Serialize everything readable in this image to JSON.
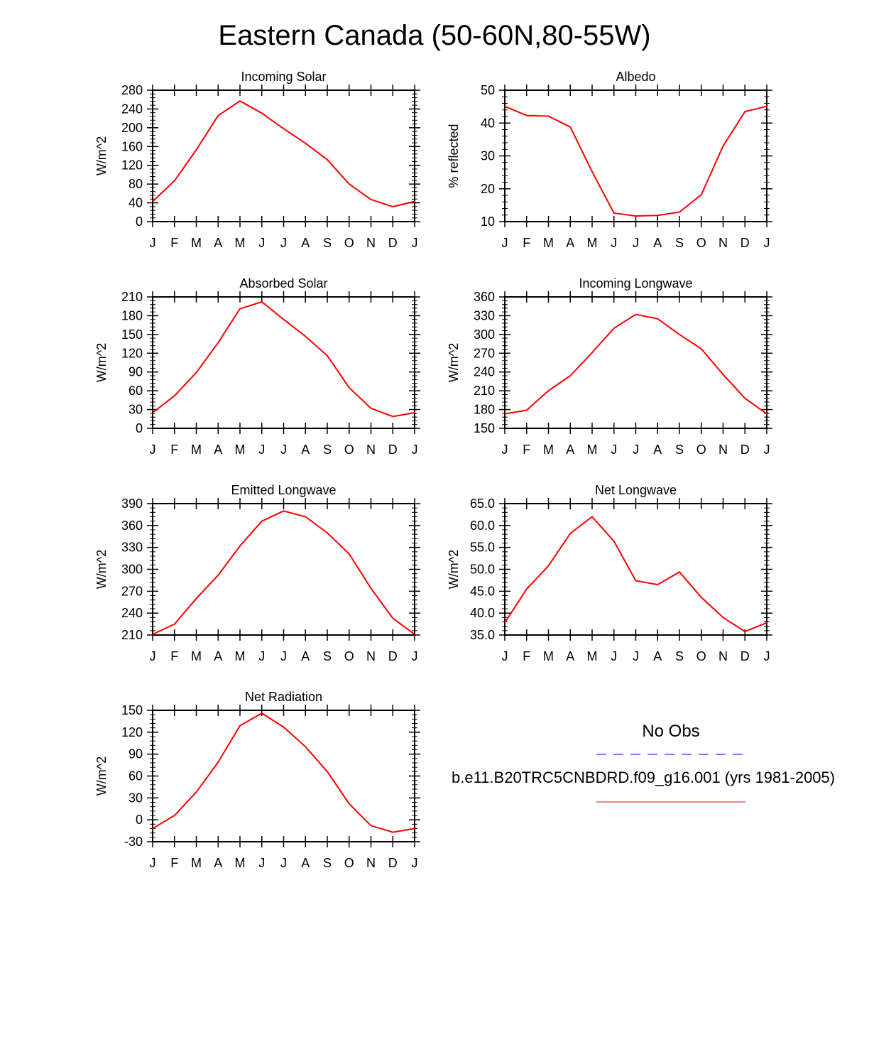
{
  "title": "Eastern Canada (50-60N,80-55W)",
  "colors": {
    "model": "#ff0000",
    "obs": "#0000ff",
    "axis": "#000000"
  },
  "chart_data": [
    {
      "type": "line",
      "title": "Incoming Solar",
      "ylabel": "W/m^2",
      "categories": [
        "J",
        "F",
        "M",
        "A",
        "M",
        "J",
        "J",
        "A",
        "S",
        "O",
        "N",
        "D",
        "J"
      ],
      "ylim": [
        0,
        280
      ],
      "yticks": [
        0,
        40,
        80,
        120,
        160,
        200,
        240,
        280
      ],
      "ytick_labels": [
        "0",
        "40",
        "80",
        "120",
        "160",
        "200",
        "240",
        "280"
      ],
      "series": [
        {
          "name": "b.e11.B20TRC5CNBDRD.f09_g16.001 (yrs 1981-2005)",
          "values": [
            43,
            87,
            153,
            226,
            257,
            231,
            198,
            167,
            132,
            80,
            47,
            32,
            43
          ]
        }
      ]
    },
    {
      "type": "line",
      "title": "Albedo",
      "ylabel": "% reflected",
      "categories": [
        "J",
        "F",
        "M",
        "A",
        "M",
        "J",
        "J",
        "A",
        "S",
        "O",
        "N",
        "D",
        "J"
      ],
      "ylim": [
        10,
        50
      ],
      "yticks": [
        10,
        20,
        30,
        40,
        50
      ],
      "ytick_labels": [
        "10",
        "20",
        "30",
        "40",
        "50"
      ],
      "series": [
        {
          "name": "b.e11.B20TRC5CNBDRD.f09_g16.001 (yrs 1981-2005)",
          "values": [
            45.1,
            42.3,
            42.1,
            38.8,
            25.2,
            12.6,
            11.7,
            11.9,
            12.9,
            18.2,
            33.0,
            43.5,
            45.1
          ]
        }
      ]
    },
    {
      "type": "line",
      "title": "Absorbed Solar",
      "ylabel": "W/m^2",
      "categories": [
        "J",
        "F",
        "M",
        "A",
        "M",
        "J",
        "J",
        "A",
        "S",
        "O",
        "N",
        "D",
        "J"
      ],
      "ylim": [
        0,
        210
      ],
      "yticks": [
        0,
        30,
        60,
        90,
        120,
        150,
        180,
        210
      ],
      "ytick_labels": [
        "0",
        "30",
        "60",
        "90",
        "120",
        "150",
        "180",
        "210"
      ],
      "series": [
        {
          "name": "b.e11.B20TRC5CNBDRD.f09_g16.001 (yrs 1981-2005)",
          "values": [
            25,
            52,
            89,
            137,
            191,
            202,
            174,
            147,
            116,
            65,
            32,
            19,
            25
          ]
        }
      ]
    },
    {
      "type": "line",
      "title": "Incoming Longwave",
      "ylabel": "W/m^2",
      "categories": [
        "J",
        "F",
        "M",
        "A",
        "M",
        "J",
        "J",
        "A",
        "S",
        "O",
        "N",
        "D",
        "J"
      ],
      "ylim": [
        150,
        360
      ],
      "yticks": [
        150,
        180,
        210,
        240,
        270,
        300,
        330,
        360
      ],
      "ytick_labels": [
        "150",
        "180",
        "210",
        "240",
        "270",
        "300",
        "330",
        "360"
      ],
      "series": [
        {
          "name": "b.e11.B20TRC5CNBDRD.f09_g16.001 (yrs 1981-2005)",
          "values": [
            173,
            179,
            210,
            234,
            271,
            310,
            332,
            325,
            300,
            277,
            236,
            198,
            173
          ]
        }
      ]
    },
    {
      "type": "line",
      "title": "Emitted Longwave",
      "ylabel": "W/m^2",
      "categories": [
        "J",
        "F",
        "M",
        "A",
        "M",
        "J",
        "J",
        "A",
        "S",
        "O",
        "N",
        "D",
        "J"
      ],
      "ylim": [
        210,
        390
      ],
      "yticks": [
        210,
        240,
        270,
        300,
        330,
        360,
        390
      ],
      "ytick_labels": [
        "210",
        "240",
        "270",
        "300",
        "330",
        "360",
        "390"
      ],
      "series": [
        {
          "name": "b.e11.B20TRC5CNBDRD.f09_g16.001 (yrs 1981-2005)",
          "values": [
            211,
            225,
            260,
            292,
            332,
            366,
            380,
            372,
            350,
            321,
            274,
            233,
            211
          ]
        }
      ]
    },
    {
      "type": "line",
      "title": "Net Longwave",
      "ylabel": "W/m^2",
      "categories": [
        "J",
        "F",
        "M",
        "A",
        "M",
        "J",
        "J",
        "A",
        "S",
        "O",
        "N",
        "D",
        "J"
      ],
      "ylim": [
        35,
        65
      ],
      "yticks": [
        35,
        40,
        45,
        50,
        55,
        60,
        65
      ],
      "ytick_labels": [
        "35.0",
        "40.0",
        "45.0",
        "50.0",
        "55.0",
        "60.0",
        "65.0"
      ],
      "series": [
        {
          "name": "b.e11.B20TRC5CNBDRD.f09_g16.001 (yrs 1981-2005)",
          "values": [
            37.8,
            45.5,
            50.8,
            58.2,
            62.0,
            56.4,
            47.4,
            46.5,
            49.4,
            43.6,
            39.0,
            35.8,
            37.8
          ]
        }
      ]
    },
    {
      "type": "line",
      "title": "Net Radiation",
      "ylabel": "W/m^2",
      "categories": [
        "J",
        "F",
        "M",
        "A",
        "M",
        "J",
        "J",
        "A",
        "S",
        "O",
        "N",
        "D",
        "J"
      ],
      "ylim": [
        -30,
        150
      ],
      "yticks": [
        -30,
        0,
        30,
        60,
        90,
        120,
        150
      ],
      "ytick_labels": [
        "-30",
        "0",
        "30",
        "60",
        "90",
        "120",
        "150"
      ],
      "series": [
        {
          "name": "b.e11.B20TRC5CNBDRD.f09_g16.001 (yrs 1981-2005)",
          "values": [
            -12,
            6,
            38,
            79,
            129,
            146,
            127,
            100,
            66,
            22,
            -8,
            -17,
            -12
          ]
        }
      ]
    }
  ],
  "legend": {
    "obs_label": "No Obs",
    "case_label": "b.e11.B20TRC5CNBDRD.f09_g16.001 (yrs 1981-2005)"
  }
}
